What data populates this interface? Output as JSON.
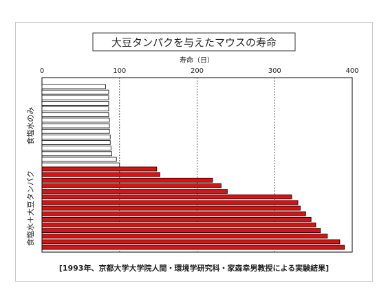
{
  "chart_data": {
    "type": "bar",
    "orientation": "horizontal",
    "title": "大豆タンパクを与えたマウスの寿命",
    "xlabel": "寿命（日）",
    "xlim": [
      0,
      400
    ],
    "xticks": [
      0,
      100,
      200,
      300,
      400
    ],
    "grid": "vertical dashed at x ticks",
    "source": "[1993年、京都大学大学院人間・環境学研究科・家森幸男教授による実験結果]",
    "series": [
      {
        "name": "食塩水のみ",
        "color": "#ffffff",
        "values": [
          82,
          86,
          86,
          86,
          86,
          86,
          87,
          87,
          87,
          88,
          88,
          89,
          90,
          96,
          100
        ]
      },
      {
        "name": "食塩水＋大豆タンパク",
        "color": "#dd1111",
        "values": [
          148,
          152,
          220,
          231,
          239,
          322,
          330,
          333,
          340,
          347,
          353,
          359,
          368,
          384,
          390
        ]
      }
    ]
  }
}
